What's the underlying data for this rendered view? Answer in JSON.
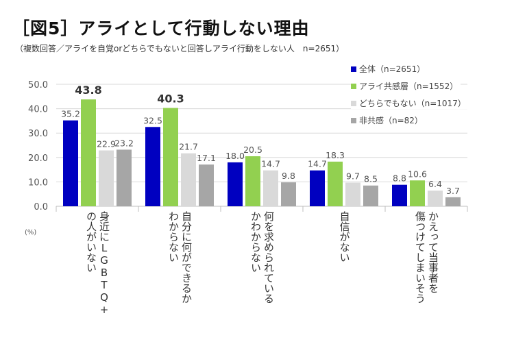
{
  "title": "［図5］アライとして行動しない理由",
  "subtitle": "（複数回答／アライを自覚orどちらでもないと回答しアライ行動をしない人　n=2651）",
  "chart_data": {
    "type": "bar",
    "unit": "(%)",
    "categories": [
      "身近にLGBTQ+\nの人がいない",
      "自分に何ができるか\nわからない",
      "何を求められている\nかわからない",
      "自信がない",
      "かえって当事者を\n傷つけてしまいそう"
    ],
    "series": [
      {
        "name": "全体（n=2651）",
        "color": "#0000c0",
        "values": [
          35.2,
          32.5,
          18.0,
          14.7,
          8.8
        ]
      },
      {
        "name": "アライ共感層（n=1552）",
        "color": "#92d050",
        "values": [
          43.8,
          40.3,
          20.5,
          18.3,
          10.6
        ]
      },
      {
        "name": "どちらでもない（n=1017）",
        "color": "#d9d9d9",
        "values": [
          22.9,
          21.7,
          14.7,
          9.7,
          6.4
        ]
      },
      {
        "name": "非共感（n=82）",
        "color": "#a6a6a6",
        "values": [
          23.2,
          17.1,
          9.8,
          8.5,
          3.7
        ]
      }
    ],
    "yticks": [
      "0.0",
      "10.0",
      "20.0",
      "30.0",
      "40.0",
      "50.0"
    ],
    "ylim": [
      0,
      50
    ],
    "grid": true,
    "legend": "top-right",
    "highlighted_labels": [
      "43.8",
      "40.3"
    ]
  }
}
